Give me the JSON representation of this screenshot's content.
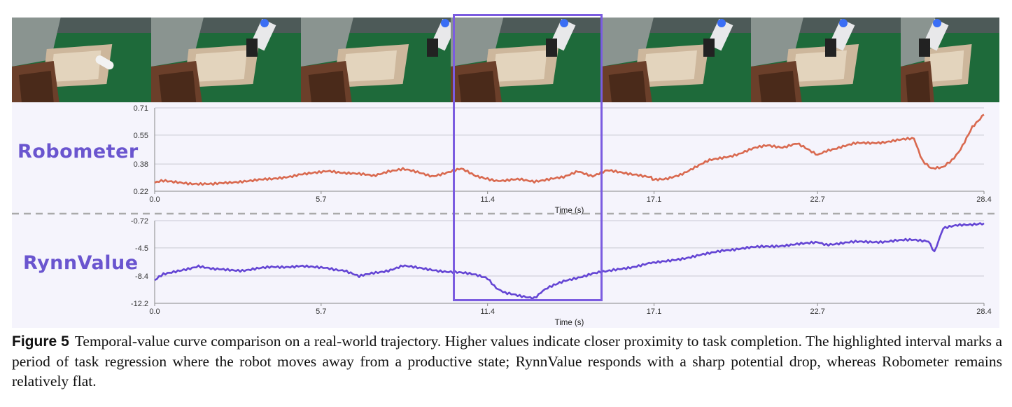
{
  "caption": {
    "label": "Figure 5",
    "text": "Temporal-value curve comparison on a real-world trajectory. Higher values indicate closer proximity to task completion. The highlighted interval marks a period of task regression where the robot moves away from a productive state; RynnValue responds with a sharp potential drop, whereas Robometer remains relatively flat."
  },
  "frames": [
    "frame-1",
    "frame-2",
    "frame-3",
    "frame-4",
    "frame-5",
    "frame-6",
    "frame-7"
  ],
  "chart_data": [
    {
      "type": "line",
      "name_label": "Robometer",
      "color": "#d9694f",
      "xlabel": "Time (s)",
      "ylabel": "",
      "xlim": [
        0,
        28.4
      ],
      "ylim": [
        0.22,
        0.71
      ],
      "x_ticks": [
        "0.0",
        "5.7",
        "11.4",
        "17.1",
        "22.7",
        "28.4"
      ],
      "y_ticks": [
        "0.71",
        "0.55",
        "0.38",
        "0.22"
      ],
      "x": [
        0.0,
        0.3,
        1.0,
        2.0,
        3.0,
        4.0,
        5.0,
        5.7,
        6.0,
        7.0,
        7.5,
        8.0,
        8.5,
        9.0,
        9.5,
        10.0,
        10.5,
        11.0,
        11.4,
        12.0,
        12.5,
        13.0,
        13.5,
        14.0,
        14.5,
        15.0,
        15.5,
        16.0,
        16.5,
        17.0,
        17.1,
        17.5,
        18.0,
        18.5,
        19.0,
        19.5,
        20.0,
        20.5,
        21.0,
        21.5,
        22.0,
        22.5,
        22.7,
        23.0,
        24.0,
        25.0,
        25.5,
        26.0,
        26.3,
        26.6,
        27.0,
        27.3,
        27.6,
        28.0,
        28.4
      ],
      "values": [
        0.27,
        0.28,
        0.27,
        0.26,
        0.28,
        0.29,
        0.32,
        0.33,
        0.34,
        0.32,
        0.31,
        0.34,
        0.35,
        0.33,
        0.31,
        0.33,
        0.35,
        0.31,
        0.29,
        0.28,
        0.29,
        0.28,
        0.29,
        0.3,
        0.34,
        0.31,
        0.34,
        0.33,
        0.32,
        0.3,
        0.29,
        0.29,
        0.32,
        0.36,
        0.4,
        0.42,
        0.44,
        0.47,
        0.49,
        0.48,
        0.5,
        0.45,
        0.43,
        0.46,
        0.5,
        0.51,
        0.52,
        0.53,
        0.4,
        0.35,
        0.36,
        0.4,
        0.47,
        0.6,
        0.67
      ]
    },
    {
      "type": "line",
      "name_label": "RynnValue",
      "color": "#6445d4",
      "xlabel": "Time (s)",
      "ylabel": "",
      "xlim": [
        0,
        28.4
      ],
      "ylim": [
        -12.2,
        -0.72
      ],
      "x_ticks": [
        "0.0",
        "5.7",
        "11.4",
        "17.1",
        "22.7",
        "28.4"
      ],
      "y_ticks": [
        "-0.72",
        "-4.5",
        "-8.4",
        "-12.2"
      ],
      "x": [
        0.0,
        0.3,
        1.0,
        1.5,
        2.0,
        3.0,
        4.0,
        5.0,
        5.7,
        6.5,
        7.0,
        7.5,
        8.0,
        8.5,
        9.0,
        9.5,
        10.0,
        10.5,
        11.0,
        11.4,
        11.7,
        12.0,
        12.5,
        13.0,
        13.3,
        13.6,
        14.0,
        14.5,
        15.0,
        15.5,
        16.0,
        16.5,
        17.0,
        17.1,
        18.0,
        19.0,
        19.5,
        20.0,
        21.0,
        22.0,
        22.7,
        23.0,
        24.0,
        25.0,
        26.0,
        26.5,
        26.7,
        27.0,
        27.5,
        28.0,
        28.4
      ],
      "values": [
        -9.0,
        -8.2,
        -7.5,
        -7.0,
        -7.5,
        -7.6,
        -7.2,
        -7.0,
        -7.3,
        -7.6,
        -8.5,
        -8.0,
        -7.6,
        -7.0,
        -7.3,
        -7.5,
        -7.8,
        -8.0,
        -8.2,
        -8.8,
        -10.0,
        -10.8,
        -11.2,
        -11.4,
        -10.5,
        -9.8,
        -9.2,
        -8.6,
        -8.0,
        -7.8,
        -7.4,
        -7.0,
        -6.6,
        -6.5,
        -6.0,
        -5.3,
        -4.8,
        -4.6,
        -4.3,
        -4.0,
        -3.8,
        -4.0,
        -3.7,
        -3.6,
        -3.4,
        -3.5,
        -5.0,
        -1.8,
        -1.4,
        -1.2,
        -1.1
      ]
    }
  ]
}
